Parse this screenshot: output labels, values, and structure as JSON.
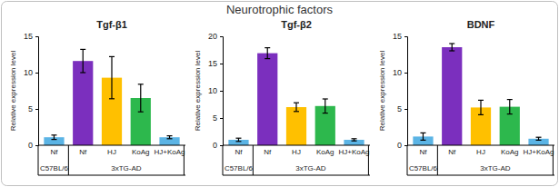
{
  "title": "Neurotrophic factors",
  "chart_data": [
    {
      "type": "bar",
      "title": "Tgf-β1",
      "y_label": "Relative expression level",
      "categories": [
        "Nf",
        "Nf",
        "HJ",
        "KoAg",
        "HJ+KoAg"
      ],
      "values": [
        1.1,
        11.6,
        9.3,
        6.5,
        1.1
      ],
      "errors": [
        0.3,
        1.6,
        2.9,
        1.9,
        0.2
      ],
      "colors": [
        "#5bb4e5",
        "#7b2fbe",
        "#ffc000",
        "#2db84d",
        "#5bb4e5"
      ],
      "groups": [
        {
          "label": "C57BL/6",
          "count": 1
        },
        {
          "label": "3xTG-AD",
          "count": 4
        }
      ],
      "ylim": [
        0,
        15
      ],
      "yticks": [
        0,
        5,
        10,
        15
      ]
    },
    {
      "type": "bar",
      "title": "Tgf-β2",
      "y_label": "Relative expression level",
      "categories": [
        "Nf",
        "Nf",
        "HJ",
        "KoAg",
        "HJ+KoAg"
      ],
      "values": [
        1.0,
        16.9,
        7.0,
        7.2,
        1.0
      ],
      "errors": [
        0.3,
        1.0,
        0.8,
        1.3,
        0.2
      ],
      "colors": [
        "#5bb4e5",
        "#7b2fbe",
        "#ffc000",
        "#2db84d",
        "#5bb4e5"
      ],
      "groups": [
        {
          "label": "C57BL/6",
          "count": 1
        },
        {
          "label": "3xTG-AD",
          "count": 4
        }
      ],
      "ylim": [
        0,
        20
      ],
      "yticks": [
        0,
        5,
        10,
        15,
        20
      ]
    },
    {
      "type": "bar",
      "title": "BDNF",
      "y_label": "Relative expression level",
      "categories": [
        "Nf",
        "Nf",
        "HJ",
        "KoAg",
        "HJ+KoAg"
      ],
      "values": [
        1.2,
        13.5,
        5.2,
        5.3,
        0.9
      ],
      "errors": [
        0.5,
        0.5,
        1.0,
        1.0,
        0.2
      ],
      "colors": [
        "#5bb4e5",
        "#7b2fbe",
        "#ffc000",
        "#2db84d",
        "#5bb4e5"
      ],
      "groups": [
        {
          "label": "C57BL/6",
          "count": 1
        },
        {
          "label": "3xTG-AD",
          "count": 4
        }
      ],
      "ylim": [
        0,
        15
      ],
      "yticks": [
        0,
        5,
        10,
        15
      ]
    }
  ]
}
